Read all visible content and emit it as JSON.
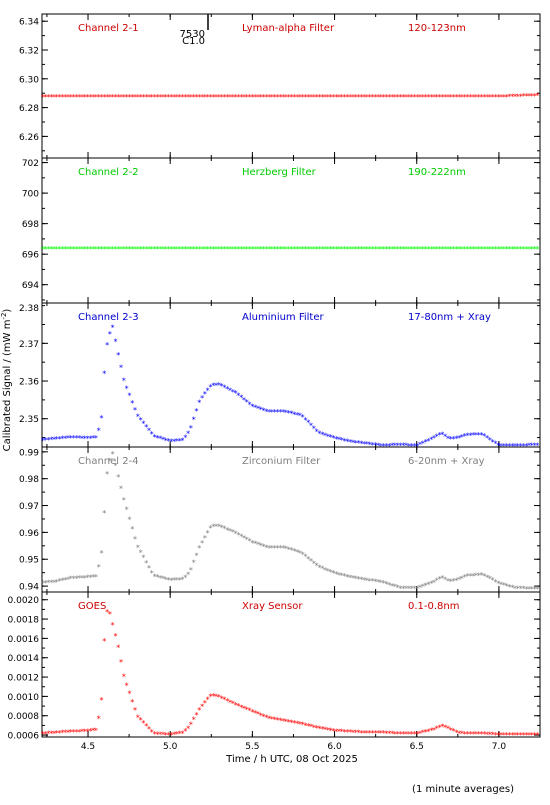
{
  "chart_data": [
    {
      "type": "scatter",
      "panel_labels": [
        "Channel 2-1",
        "Lyman-alpha Filter",
        "120-123nm"
      ],
      "label_color": "#cc0000",
      "marker_color": "#ff0000",
      "ylim": [
        6.245,
        6.345
      ],
      "yticks": [
        "6.26",
        "6.28",
        "6.30",
        "6.32",
        "6.34"
      ],
      "flare_annotation": {
        "time": 5.23,
        "text_top": "7530",
        "text_bottom": "C1.0"
      },
      "series": [
        {
          "x": [
            4.22,
            5.0,
            5.5,
            6.0,
            6.5,
            7.0,
            7.25
          ],
          "values": [
            6.288,
            6.288,
            6.288,
            6.288,
            6.288,
            6.288,
            6.289
          ]
        }
      ]
    },
    {
      "type": "scatter",
      "panel_labels": [
        "Channel 2-2",
        "Herzberg Filter",
        "190-222nm"
      ],
      "label_color": "#00cc00",
      "marker_color": "#00ff00",
      "ylim": [
        692.8,
        702.3
      ],
      "yticks": [
        "694",
        "696",
        "698",
        "700",
        "702"
      ],
      "series": [
        {
          "x": [
            4.22,
            5.0,
            5.5,
            6.0,
            6.5,
            7.0,
            7.25
          ],
          "values": [
            696.4,
            696.4,
            696.4,
            696.4,
            696.4,
            696.4,
            696.4
          ]
        }
      ]
    },
    {
      "type": "scatter",
      "panel_labels": [
        "Channel 2-3",
        "Aluminium Filter",
        "17-80nm + Xray"
      ],
      "label_color": "#0000cc",
      "marker_color": "#0000ff",
      "ylim": [
        2.3425,
        2.3807
      ],
      "yticks": [
        "2.37",
        "2.36",
        "2.35"
      ],
      "extra_tick_labels": [
        "2.38"
      ],
      "series": [
        {
          "x": [
            4.22,
            4.3,
            4.4,
            4.5,
            4.55,
            4.58,
            4.6,
            4.62,
            4.65,
            4.68,
            4.72,
            4.8,
            4.9,
            5.0,
            5.08,
            5.12,
            5.18,
            5.25,
            5.3,
            5.4,
            5.5,
            5.6,
            5.7,
            5.8,
            5.9,
            6.0,
            6.1,
            6.2,
            6.3,
            6.4,
            6.5,
            6.6,
            6.65,
            6.7,
            6.75,
            6.8,
            6.9,
            6.95,
            7.0,
            7.1,
            7.25
          ],
          "values": [
            2.3445,
            2.3448,
            2.3452,
            2.345,
            2.3452,
            2.349,
            2.363,
            2.3715,
            2.3745,
            2.368,
            2.36,
            2.351,
            2.3455,
            2.3442,
            2.3445,
            2.347,
            2.355,
            2.359,
            2.3592,
            2.357,
            2.3535,
            2.352,
            2.352,
            2.351,
            2.3465,
            2.345,
            2.344,
            2.3435,
            2.343,
            2.3432,
            2.343,
            2.345,
            2.3462,
            2.3448,
            2.345,
            2.3458,
            2.346,
            2.3445,
            2.343,
            2.343,
            2.3432
          ]
        }
      ]
    },
    {
      "type": "scatter",
      "panel_labels": [
        "Channel 2-4",
        "Zirconium Filter",
        "6-20nm + Xray"
      ],
      "label_color": "#808080",
      "marker_color": "#808080",
      "ylim": [
        0.9378,
        0.9918
      ],
      "yticks": [
        "0.94",
        "0.95",
        "0.96",
        "0.97",
        "0.98",
        "0.99"
      ],
      "series": [
        {
          "x": [
            4.22,
            4.3,
            4.4,
            4.5,
            4.55,
            4.58,
            4.6,
            4.62,
            4.65,
            4.68,
            4.72,
            4.8,
            4.9,
            5.0,
            5.08,
            5.12,
            5.18,
            5.25,
            5.3,
            5.4,
            5.5,
            5.6,
            5.7,
            5.8,
            5.9,
            6.0,
            6.1,
            6.2,
            6.3,
            6.4,
            6.5,
            6.6,
            6.65,
            6.7,
            6.75,
            6.8,
            6.9,
            6.95,
            7.0,
            7.1,
            7.25
          ],
          "values": [
            0.9415,
            0.9418,
            0.9432,
            0.9435,
            0.9438,
            0.951,
            0.9685,
            0.9855,
            0.9895,
            0.982,
            0.972,
            0.955,
            0.944,
            0.9425,
            0.9428,
            0.9455,
            0.955,
            0.9625,
            0.9625,
            0.96,
            0.9565,
            0.9545,
            0.9545,
            0.9525,
            0.9475,
            0.945,
            0.9435,
            0.9425,
            0.9415,
            0.9395,
            0.9395,
            0.9415,
            0.9435,
            0.942,
            0.9425,
            0.944,
            0.9445,
            0.943,
            0.9412,
            0.9395,
            0.9392
          ]
        }
      ]
    },
    {
      "type": "scatter",
      "panel_labels": [
        "GOES",
        "Xray Sensor",
        "0.1-0.8nm"
      ],
      "label_color": "#cc0000",
      "marker_color": "#ff0000",
      "ylim": [
        0.00058,
        0.00208
      ],
      "yticks": [
        "0.0006",
        "0.0008",
        "0.0010",
        "0.0012",
        "0.0014",
        "0.0016",
        "0.0018",
        "0.0020"
      ],
      "series": [
        {
          "x": [
            4.22,
            4.3,
            4.4,
            4.5,
            4.55,
            4.58,
            4.6,
            4.62,
            4.65,
            4.68,
            4.72,
            4.8,
            4.9,
            5.0,
            5.08,
            5.12,
            5.18,
            5.25,
            5.3,
            5.4,
            5.5,
            5.6,
            5.7,
            5.8,
            5.9,
            6.0,
            6.1,
            6.2,
            6.3,
            6.4,
            6.5,
            6.6,
            6.65,
            6.7,
            6.75,
            6.8,
            6.9,
            7.0,
            7.1,
            7.25
          ],
          "values": [
            0.00062,
            0.00063,
            0.00064,
            0.00065,
            0.00066,
            0.0009,
            0.00162,
            0.00195,
            0.00175,
            0.00155,
            0.0012,
            0.0008,
            0.00062,
            0.00061,
            0.00063,
            0.0007,
            0.00088,
            0.00102,
            0.001,
            0.00092,
            0.00085,
            0.00078,
            0.00075,
            0.00072,
            0.00068,
            0.00065,
            0.00064,
            0.00063,
            0.00063,
            0.00062,
            0.00062,
            0.00066,
            0.0007,
            0.00067,
            0.00063,
            0.00062,
            0.00062,
            0.00061,
            0.00061,
            0.00061
          ]
        }
      ]
    }
  ],
  "x_axis": {
    "xlim": [
      4.22,
      7.25
    ],
    "ticks": [
      4.5,
      5.0,
      5.5,
      6.0,
      6.5,
      7.0
    ],
    "tick_labels": [
      "4.5",
      "5.0",
      "5.5",
      "6.0",
      "6.5",
      "7.0"
    ],
    "xlabel": "Time / h UTC, 08 Oct 2025"
  },
  "ylabel": "Calibrated Signal / (mW m",
  "ylabel_sup": "-2",
  "ylabel_close": ")",
  "footnote": "(1 minute averages)"
}
